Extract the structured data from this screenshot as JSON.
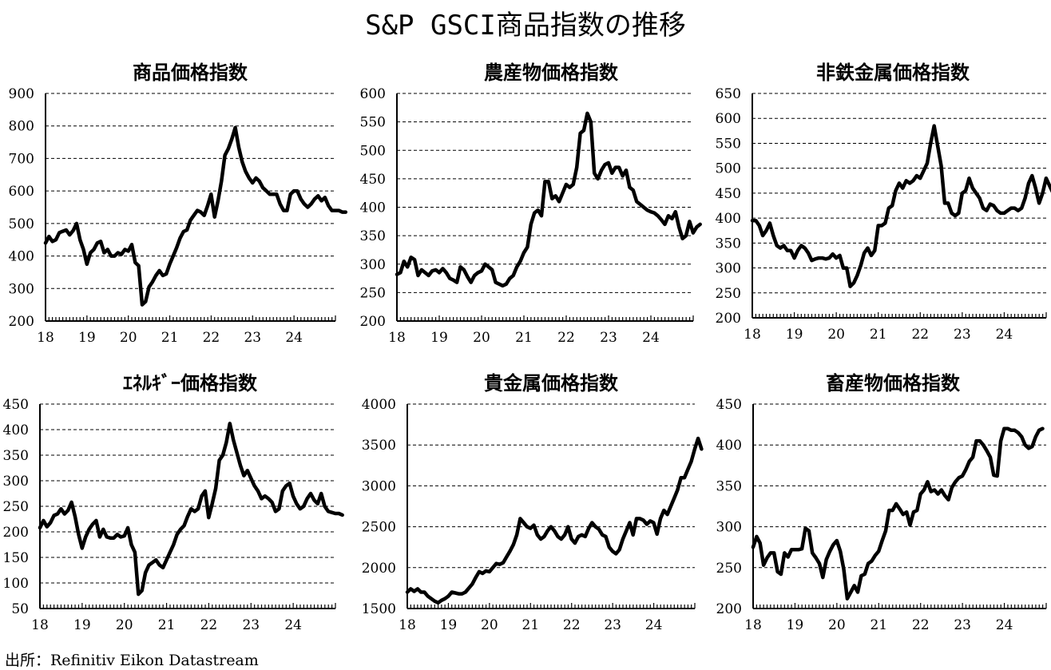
{
  "title": "S&P GSCI商品指数の推移",
  "source": "出所：Refinitiv Eikon Datastream",
  "colors": {
    "line": "#000000",
    "grid": "#000000",
    "background": "#ffffff"
  },
  "chart_data": [
    {
      "type": "line",
      "title": "商品価格指数",
      "ylim": [
        200,
        900
      ],
      "yticks": [
        200,
        300,
        400,
        500,
        600,
        700,
        800,
        900
      ],
      "xticks": [
        "18",
        "19",
        "20",
        "21",
        "22",
        "23",
        "24"
      ],
      "x_start": 2018.0,
      "x_step": 0.0833,
      "values": [
        440,
        460,
        445,
        450,
        472,
        476,
        480,
        465,
        478,
        500,
        450,
        420,
        375,
        410,
        420,
        440,
        445,
        410,
        420,
        400,
        400,
        410,
        405,
        420,
        415,
        435,
        380,
        370,
        250,
        260,
        305,
        320,
        340,
        355,
        340,
        345,
        375,
        400,
        425,
        455,
        475,
        480,
        510,
        525,
        540,
        535,
        525,
        555,
        590,
        520,
        570,
        630,
        710,
        730,
        760,
        795,
        735,
        690,
        660,
        640,
        625,
        640,
        630,
        610,
        600,
        590,
        590,
        590,
        560,
        540,
        540,
        590,
        600,
        600,
        575,
        560,
        550,
        560,
        575,
        585,
        570,
        580,
        555,
        540,
        540,
        540,
        535,
        535
      ]
    },
    {
      "type": "line",
      "title": "農産物価格指数",
      "ylim": [
        200,
        600
      ],
      "yticks": [
        200,
        250,
        300,
        350,
        400,
        450,
        500,
        550,
        600
      ],
      "xticks": [
        "18",
        "19",
        "20",
        "21",
        "22",
        "23",
        "24"
      ],
      "x_start": 2018.0,
      "x_step": 0.0833,
      "values": [
        282,
        285,
        305,
        295,
        312,
        308,
        280,
        290,
        285,
        280,
        288,
        290,
        285,
        292,
        285,
        275,
        272,
        268,
        295,
        290,
        278,
        268,
        280,
        285,
        288,
        300,
        295,
        290,
        268,
        265,
        262,
        265,
        275,
        280,
        295,
        305,
        320,
        330,
        370,
        390,
        395,
        385,
        445,
        445,
        415,
        420,
        410,
        425,
        440,
        435,
        440,
        470,
        530,
        535,
        565,
        550,
        460,
        450,
        465,
        475,
        478,
        460,
        470,
        470,
        455,
        465,
        435,
        430,
        410,
        405,
        400,
        395,
        392,
        390,
        385,
        378,
        370,
        385,
        380,
        392,
        365,
        345,
        350,
        375,
        355,
        365,
        370
      ]
    },
    {
      "type": "line",
      "title": "非鉄金属価格指数",
      "ylim": [
        200,
        650
      ],
      "yticks": [
        200,
        250,
        300,
        350,
        400,
        450,
        500,
        550,
        600,
        650
      ],
      "xticks": [
        "18",
        "19",
        "20",
        "21",
        "22",
        "23",
        "24"
      ],
      "x_start": 2018.0,
      "x_step": 0.0833,
      "values": [
        395,
        395,
        385,
        365,
        375,
        390,
        365,
        345,
        340,
        345,
        335,
        335,
        320,
        335,
        345,
        340,
        330,
        315,
        318,
        320,
        320,
        318,
        320,
        328,
        320,
        325,
        300,
        300,
        263,
        270,
        285,
        305,
        330,
        340,
        325,
        335,
        385,
        385,
        390,
        420,
        425,
        455,
        470,
        460,
        475,
        470,
        475,
        485,
        480,
        495,
        510,
        550,
        585,
        545,
        505,
        430,
        430,
        410,
        405,
        410,
        450,
        455,
        480,
        460,
        450,
        440,
        420,
        415,
        428,
        425,
        415,
        410,
        410,
        415,
        420,
        420,
        415,
        420,
        440,
        470,
        485,
        460,
        430,
        450,
        480,
        465,
        450
      ]
    },
    {
      "type": "line",
      "title": "ｴﾈﾙｷﾞｰ価格指数",
      "ylim": [
        50,
        450
      ],
      "yticks": [
        50,
        100,
        150,
        200,
        250,
        300,
        350,
        400,
        450
      ],
      "xticks": [
        "18",
        "19",
        "20",
        "21",
        "22",
        "23",
        "24"
      ],
      "x_start": 2018.0,
      "x_step": 0.0833,
      "values": [
        208,
        222,
        210,
        218,
        232,
        235,
        245,
        235,
        242,
        258,
        230,
        195,
        168,
        190,
        205,
        215,
        222,
        190,
        205,
        190,
        188,
        188,
        195,
        190,
        192,
        208,
        175,
        160,
        78,
        85,
        120,
        135,
        140,
        145,
        135,
        130,
        145,
        160,
        175,
        195,
        205,
        212,
        230,
        245,
        240,
        245,
        270,
        280,
        228,
        255,
        285,
        340,
        350,
        375,
        412,
        380,
        355,
        330,
        310,
        320,
        305,
        290,
        280,
        265,
        270,
        265,
        258,
        240,
        245,
        280,
        290,
        295,
        270,
        255,
        245,
        250,
        265,
        275,
        262,
        255,
        275,
        250,
        240,
        238,
        236,
        236,
        233
      ]
    },
    {
      "type": "line",
      "title": "貴金属価格指数",
      "ylim": [
        1500,
        4000
      ],
      "yticks": [
        1500,
        2000,
        2500,
        3000,
        3500,
        4000
      ],
      "xticks": [
        "18",
        "19",
        "20",
        "21",
        "22",
        "23",
        "24"
      ],
      "x_start": 2018.0,
      "x_step": 0.0833,
      "values": [
        1700,
        1740,
        1710,
        1740,
        1700,
        1700,
        1650,
        1620,
        1590,
        1570,
        1600,
        1620,
        1650,
        1700,
        1690,
        1680,
        1680,
        1700,
        1750,
        1800,
        1880,
        1950,
        1930,
        1960,
        1950,
        2000,
        2050,
        2040,
        2060,
        2130,
        2200,
        2280,
        2400,
        2600,
        2550,
        2500,
        2480,
        2520,
        2400,
        2350,
        2380,
        2450,
        2500,
        2450,
        2380,
        2350,
        2400,
        2500,
        2350,
        2300,
        2380,
        2400,
        2380,
        2480,
        2550,
        2500,
        2470,
        2400,
        2380,
        2250,
        2200,
        2170,
        2220,
        2350,
        2450,
        2550,
        2400,
        2600,
        2600,
        2580,
        2530,
        2570,
        2550,
        2410,
        2600,
        2700,
        2650,
        2750,
        2850,
        2950,
        3100,
        3100,
        3200,
        3300,
        3450,
        3580,
        3450
      ]
    },
    {
      "type": "line",
      "title": "畜産物価格指数",
      "ylim": [
        200,
        450
      ],
      "yticks": [
        200,
        250,
        300,
        350,
        400,
        450
      ],
      "xticks": [
        "18",
        "19",
        "20",
        "21",
        "22",
        "23",
        "24"
      ],
      "x_start": 2018.0,
      "x_step": 0.0833,
      "values": [
        275,
        288,
        280,
        253,
        262,
        268,
        268,
        245,
        242,
        268,
        263,
        272,
        272,
        272,
        273,
        298,
        295,
        268,
        262,
        255,
        238,
        260,
        270,
        278,
        283,
        270,
        248,
        212,
        220,
        228,
        220,
        240,
        242,
        255,
        258,
        265,
        270,
        283,
        295,
        320,
        320,
        328,
        322,
        315,
        318,
        302,
        318,
        320,
        340,
        345,
        355,
        343,
        345,
        340,
        345,
        338,
        333,
        348,
        355,
        360,
        362,
        370,
        380,
        385,
        405,
        405,
        400,
        393,
        385,
        363,
        362,
        405,
        420,
        420,
        418,
        418,
        415,
        410,
        400,
        396,
        398,
        410,
        418,
        420
      ]
    }
  ]
}
